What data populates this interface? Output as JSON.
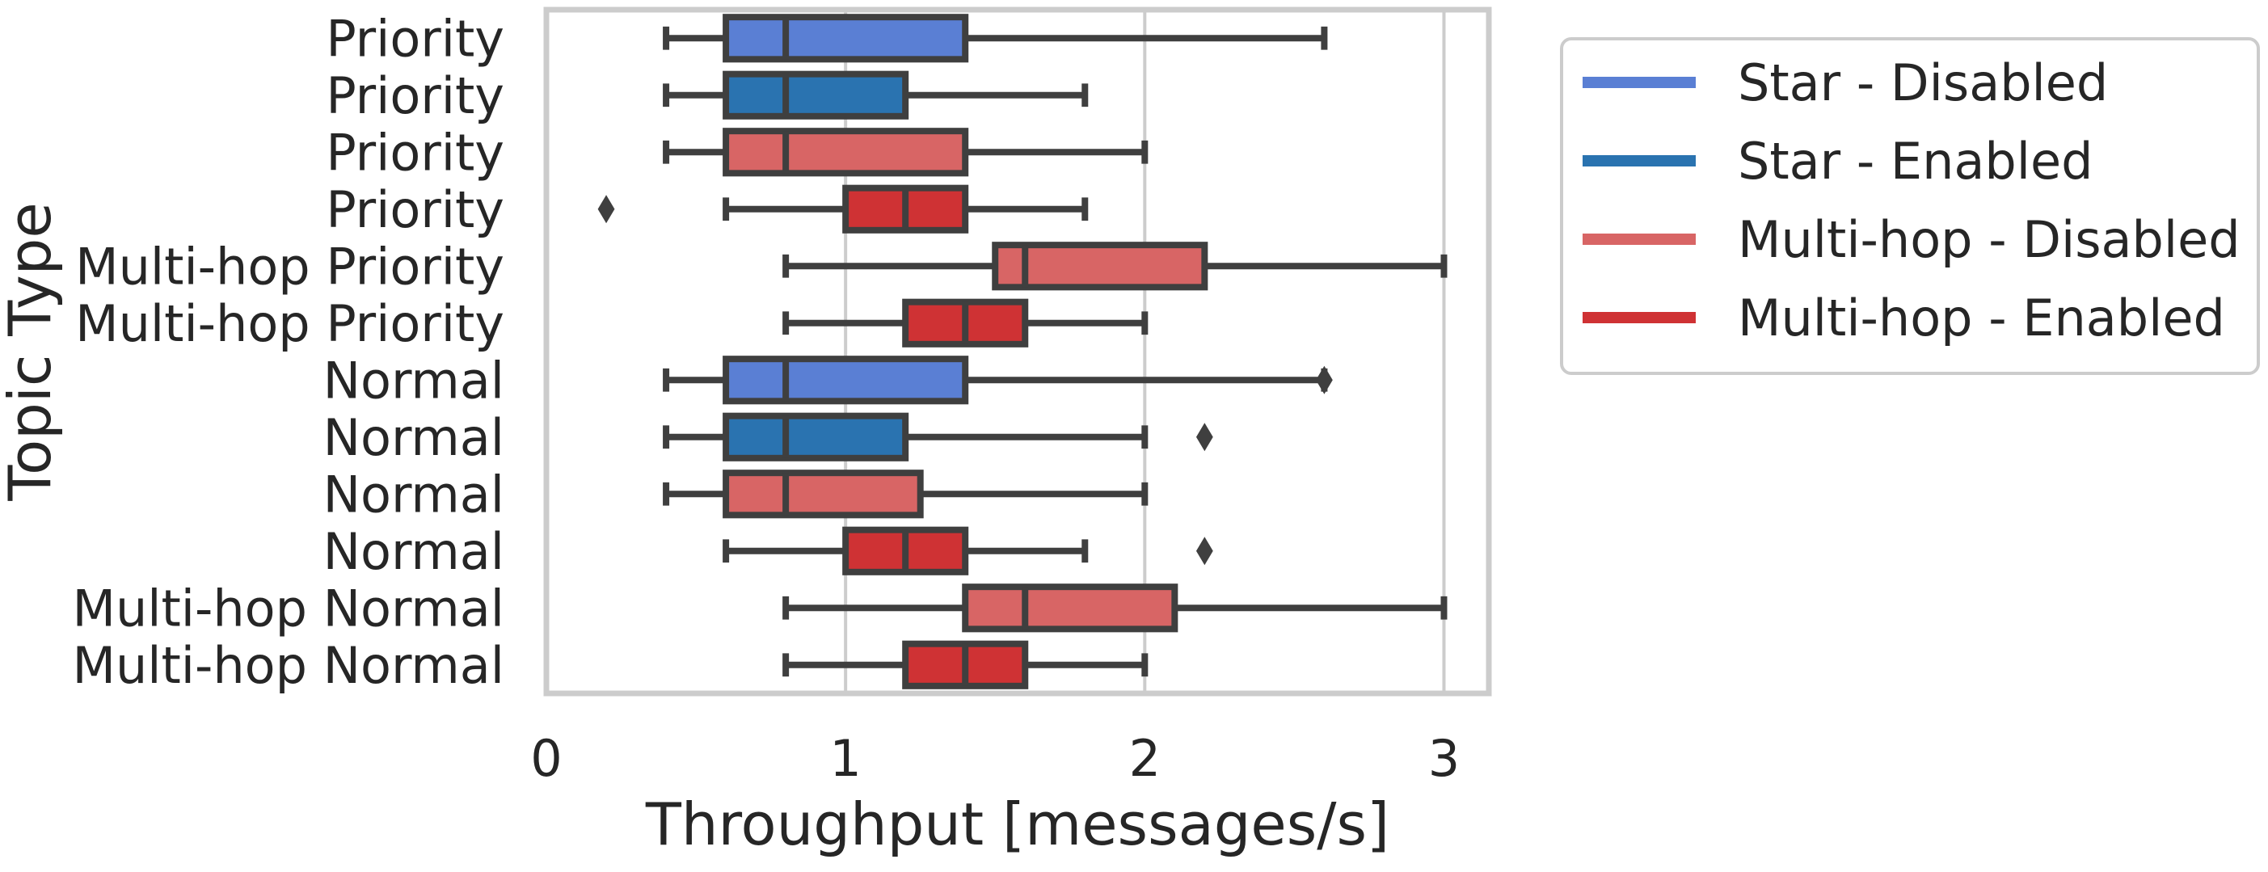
{
  "chart_data": {
    "type": "boxplot",
    "orientation": "horizontal",
    "title": "",
    "xlabel": "Throughput [messages/s]",
    "ylabel": "Topic Type",
    "xlim": [
      0,
      3.15
    ],
    "xticks": [
      "0",
      "1",
      "2",
      "3"
    ],
    "xtick_values": [
      0,
      1,
      2,
      3
    ],
    "grid": "vertical",
    "legend_position": "outside-right-top",
    "series": [
      {
        "name": "Star - Disabled",
        "color": "#5a7fd4"
      },
      {
        "name": "Star - Enabled",
        "color": "#2a73b0"
      },
      {
        "name": "Multi-hop - Disabled",
        "color": "#d86565"
      },
      {
        "name": "Multi-hop - Enabled",
        "color": "#cf3234"
      }
    ],
    "categories": [
      "Priority",
      "Priority",
      "Priority",
      "Priority",
      "Multi-hop Priority",
      "Multi-hop Priority",
      "Normal",
      "Normal",
      "Normal",
      "Normal",
      "Multi-hop Normal",
      "Multi-hop Normal"
    ],
    "boxes": [
      {
        "category": "Priority",
        "series": 0,
        "whislo": 0.4,
        "q1": 0.6,
        "med": 0.8,
        "q3": 1.4,
        "whishi": 2.6,
        "fliers": []
      },
      {
        "category": "Priority",
        "series": 1,
        "whislo": 0.4,
        "q1": 0.6,
        "med": 0.8,
        "q3": 1.2,
        "whishi": 1.8,
        "fliers": []
      },
      {
        "category": "Priority",
        "series": 2,
        "whislo": 0.4,
        "q1": 0.6,
        "med": 0.8,
        "q3": 1.4,
        "whishi": 2.0,
        "fliers": []
      },
      {
        "category": "Priority",
        "series": 3,
        "whislo": 0.6,
        "q1": 1.0,
        "med": 1.2,
        "q3": 1.4,
        "whishi": 1.8,
        "fliers": [
          0.2
        ]
      },
      {
        "category": "Multi-hop Priority",
        "series": 2,
        "whislo": 0.8,
        "q1": 1.5,
        "med": 1.6,
        "q3": 2.2,
        "whishi": 3.0,
        "fliers": []
      },
      {
        "category": "Multi-hop Priority",
        "series": 3,
        "whislo": 0.8,
        "q1": 1.2,
        "med": 1.4,
        "q3": 1.6,
        "whishi": 2.0,
        "fliers": []
      },
      {
        "category": "Normal",
        "series": 0,
        "whislo": 0.4,
        "q1": 0.6,
        "med": 0.8,
        "q3": 1.4,
        "whishi": 2.6,
        "fliers": [
          2.6
        ]
      },
      {
        "category": "Normal",
        "series": 1,
        "whislo": 0.4,
        "q1": 0.6,
        "med": 0.8,
        "q3": 1.2,
        "whishi": 2.0,
        "fliers": [
          2.2
        ]
      },
      {
        "category": "Normal",
        "series": 2,
        "whislo": 0.4,
        "q1": 0.6,
        "med": 0.8,
        "q3": 1.25,
        "whishi": 2.0,
        "fliers": []
      },
      {
        "category": "Normal",
        "series": 3,
        "whislo": 0.6,
        "q1": 1.0,
        "med": 1.2,
        "q3": 1.4,
        "whishi": 1.8,
        "fliers": [
          2.2
        ]
      },
      {
        "category": "Multi-hop Normal",
        "series": 2,
        "whislo": 0.8,
        "q1": 1.4,
        "med": 1.6,
        "q3": 2.1,
        "whishi": 3.0,
        "fliers": []
      },
      {
        "category": "Multi-hop Normal",
        "series": 3,
        "whislo": 0.8,
        "q1": 1.2,
        "med": 1.4,
        "q3": 1.6,
        "whishi": 2.0,
        "fliers": []
      }
    ]
  }
}
